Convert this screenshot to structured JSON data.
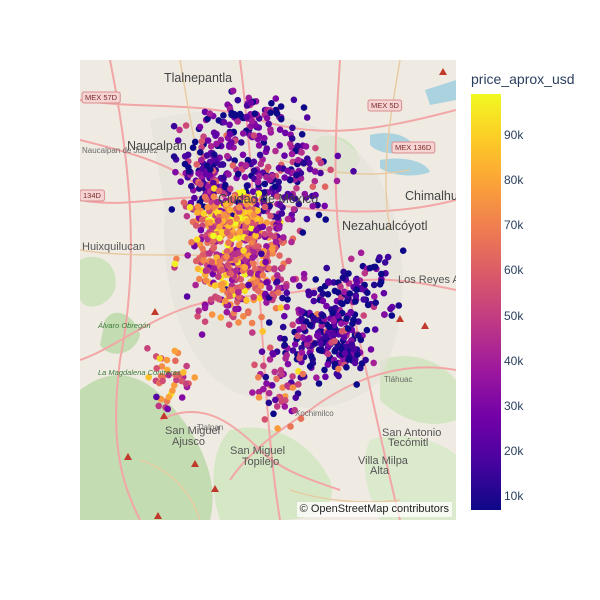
{
  "map": {
    "attribution": "© OpenStreetMap contributors",
    "place_labels": [
      {
        "text": "Tlalnepantla",
        "size": "big"
      },
      {
        "text": "Naucalpan",
        "size": "big"
      },
      {
        "text": "Chimalhu",
        "size": "big"
      },
      {
        "text": "Nezahualcóyotl",
        "size": "big"
      },
      {
        "text": "Ciudad de México",
        "size": "big"
      },
      {
        "text": "Huixquilucan",
        "size": "normal"
      },
      {
        "text": "Los Reyes Acaquilpan",
        "size": "normal"
      },
      {
        "text": "San Miguel",
        "size": "normal"
      },
      {
        "text": "Ajusco",
        "size": "normal"
      },
      {
        "text": "San Miguel",
        "size": "normal"
      },
      {
        "text": "Topilejo",
        "size": "normal"
      },
      {
        "text": "San Antonio",
        "size": "normal"
      },
      {
        "text": "Tecómitl",
        "size": "normal"
      },
      {
        "text": "Villa Milpa",
        "size": "normal"
      },
      {
        "text": "Alta",
        "size": "normal"
      },
      {
        "text": "Naucalpan de Juárez",
        "size": "small"
      },
      {
        "text": "Tláhuac",
        "size": "small"
      },
      {
        "text": "Xochimilco",
        "size": "small"
      },
      {
        "text": "Tlalpan",
        "size": "small"
      },
      {
        "text": "La Magdalena Contreras",
        "size": "green"
      },
      {
        "text": "Álvaro Obregón",
        "size": "green"
      }
    ],
    "road_shields": [
      "MEX 57D",
      "MEX 5D",
      "MEX 136D",
      "134D",
      "MEX 57D"
    ]
  },
  "colorbar": {
    "title": "price_aprox_usd",
    "colorscale": "plasma",
    "min": 7000,
    "max": 99000,
    "ticks": [
      {
        "value": 90000,
        "label": "90k"
      },
      {
        "value": 80000,
        "label": "80k"
      },
      {
        "value": 70000,
        "label": "70k"
      },
      {
        "value": 60000,
        "label": "60k"
      },
      {
        "value": 50000,
        "label": "50k"
      },
      {
        "value": 40000,
        "label": "40k"
      },
      {
        "value": 30000,
        "label": "30k"
      },
      {
        "value": 20000,
        "label": "20k"
      },
      {
        "value": 10000,
        "label": "10k"
      }
    ]
  },
  "colors": {
    "land": "#efebe3",
    "water": "#aad3df",
    "green": "#b9d8a8",
    "road": "#f2a6a6"
  }
}
